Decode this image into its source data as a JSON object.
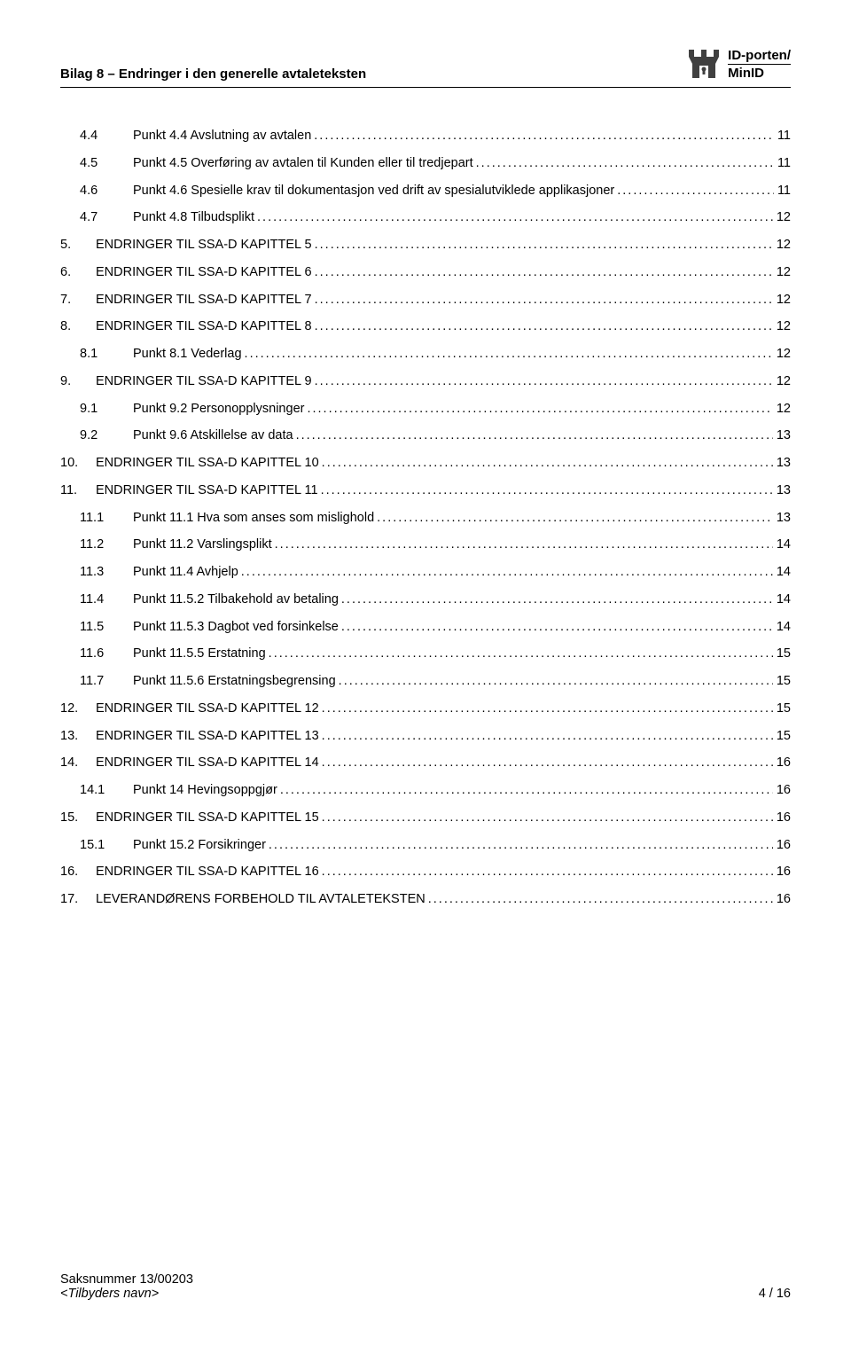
{
  "header": {
    "title": "Bilag 8 – Endringer i den generelle avtaleteksten",
    "logo_line1": "ID-porten/",
    "logo_line2": "MinID"
  },
  "toc": [
    {
      "indent": 1,
      "num": "4.4",
      "label": "Punkt 4.4 Avslutning av avtalen",
      "page": "11"
    },
    {
      "indent": 1,
      "num": "4.5",
      "label": "Punkt 4.5 Overføring av avtalen til Kunden eller til tredjepart",
      "page": "11"
    },
    {
      "indent": 1,
      "num": "4.6",
      "label": "Punkt 4.6 Spesielle krav til dokumentasjon ved drift av spesialutviklede applikasjoner",
      "page": "11"
    },
    {
      "indent": 1,
      "num": "4.7",
      "label": "Punkt 4.8 Tilbudsplikt",
      "page": "12"
    },
    {
      "indent": 0,
      "num": "5.",
      "label": "ENDRINGER TIL SSA-D KAPITTEL 5",
      "page": "12"
    },
    {
      "indent": 0,
      "num": "6.",
      "label": "ENDRINGER TIL SSA-D KAPITTEL 6",
      "page": "12"
    },
    {
      "indent": 0,
      "num": "7.",
      "label": "ENDRINGER TIL SSA-D KAPITTEL 7",
      "page": "12"
    },
    {
      "indent": 0,
      "num": "8.",
      "label": "ENDRINGER TIL SSA-D KAPITTEL 8",
      "page": "12"
    },
    {
      "indent": 1,
      "num": "8.1",
      "label": "Punkt 8.1 Vederlag",
      "page": "12"
    },
    {
      "indent": 0,
      "num": "9.",
      "label": "ENDRINGER TIL SSA-D KAPITTEL 9",
      "page": "12"
    },
    {
      "indent": 1,
      "num": "9.1",
      "label": "Punkt 9.2 Personopplysninger",
      "page": "12"
    },
    {
      "indent": 1,
      "num": "9.2",
      "label": "Punkt 9.6 Atskillelse av data",
      "page": "13"
    },
    {
      "indent": 0,
      "num": "10.",
      "label": "ENDRINGER TIL SSA-D KAPITTEL 10",
      "page": "13"
    },
    {
      "indent": 0,
      "num": "11.",
      "label": "ENDRINGER TIL SSA-D KAPITTEL 11",
      "page": "13"
    },
    {
      "indent": 1,
      "num": "11.1",
      "label": "Punkt 11.1 Hva som anses som mislighold",
      "page": "13"
    },
    {
      "indent": 1,
      "num": "11.2",
      "label": "Punkt 11.2 Varslingsplikt",
      "page": "14"
    },
    {
      "indent": 1,
      "num": "11.3",
      "label": "Punkt 11.4 Avhjelp",
      "page": "14"
    },
    {
      "indent": 1,
      "num": "11.4",
      "label": "Punkt 11.5.2 Tilbakehold av betaling",
      "page": "14"
    },
    {
      "indent": 1,
      "num": "11.5",
      "label": "Punkt 11.5.3 Dagbot ved forsinkelse",
      "page": "14"
    },
    {
      "indent": 1,
      "num": "11.6",
      "label": "Punkt 11.5.5 Erstatning",
      "page": "15"
    },
    {
      "indent": 1,
      "num": "11.7",
      "label": "Punkt 11.5.6 Erstatningsbegrensing",
      "page": "15"
    },
    {
      "indent": 0,
      "num": "12.",
      "label": "ENDRINGER TIL SSA-D KAPITTEL 12",
      "page": "15"
    },
    {
      "indent": 0,
      "num": "13.",
      "label": "ENDRINGER TIL SSA-D KAPITTEL 13",
      "page": "15"
    },
    {
      "indent": 0,
      "num": "14.",
      "label": "ENDRINGER TIL SSA-D KAPITTEL 14",
      "page": "16"
    },
    {
      "indent": 1,
      "num": "14.1",
      "label": "Punkt 14 Hevingsoppgjør",
      "page": "16"
    },
    {
      "indent": 0,
      "num": "15.",
      "label": "ENDRINGER TIL SSA-D KAPITTEL 15",
      "page": "16"
    },
    {
      "indent": 1,
      "num": "15.1",
      "label": "Punkt 15.2  Forsikringer",
      "page": "16"
    },
    {
      "indent": 0,
      "num": "16.",
      "label": "ENDRINGER TIL SSA-D KAPITTEL 16",
      "page": "16"
    },
    {
      "indent": 0,
      "num": "17.",
      "label": "LEVERANDØRENS FORBEHOLD TIL AVTALETEKSTEN",
      "page": "16"
    }
  ],
  "footer": {
    "case_number": "Saksnummer 13/00203",
    "supplier": "<Tilbyders navn>",
    "page_info": "4 / 16"
  }
}
